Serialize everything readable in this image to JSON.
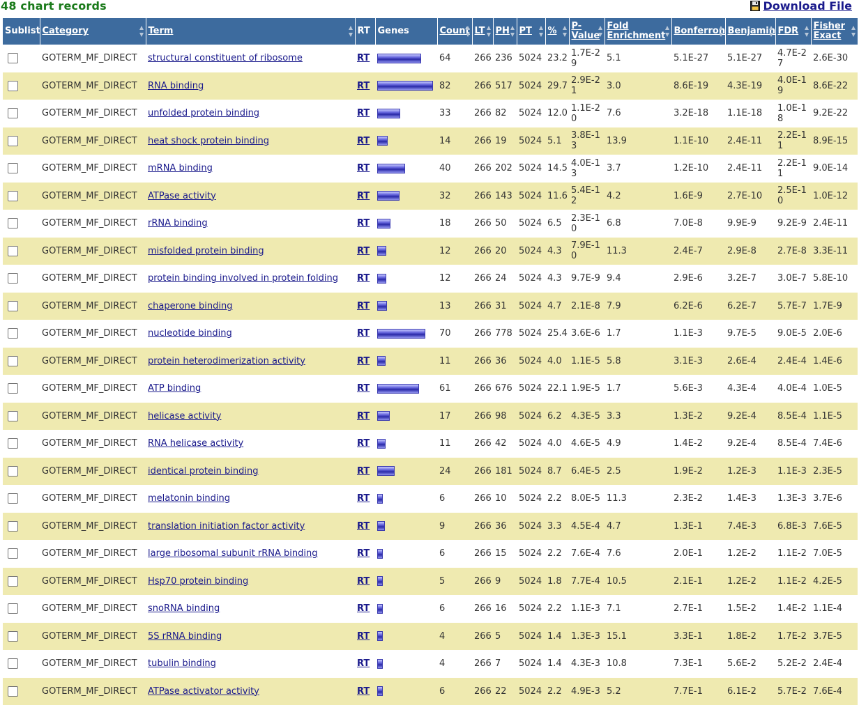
{
  "header": {
    "records_label": "48 chart records",
    "download_label": "Download File",
    "download_icon": "floppy-disk-icon"
  },
  "columns": [
    "Sublist",
    "Category",
    "Term",
    "RT",
    "Genes",
    "Count",
    "LT",
    "PH",
    "PT",
    "%",
    "P-Value",
    "Fold Enrichment",
    "Bonferroni",
    "Benjamini",
    "FDR",
    "Fisher Exact"
  ],
  "rows": [
    {
      "category": "GOTERM_MF_DIRECT",
      "term": "structural constituent of ribosome",
      "rt": "RT",
      "count": "64",
      "lt": "266",
      "ph": "236",
      "pt": "5024",
      "pct": "23.2",
      "pvalue": "1.7E-29",
      "fold": "5.1",
      "bonferroni": "5.1E-27",
      "benjamini": "5.1E-27",
      "fdr": "4.7E-27",
      "fisher": "2.6E-30"
    },
    {
      "category": "GOTERM_MF_DIRECT",
      "term": "RNA binding",
      "rt": "RT",
      "count": "82",
      "lt": "266",
      "ph": "517",
      "pt": "5024",
      "pct": "29.7",
      "pvalue": "2.9E-21",
      "fold": "3.0",
      "bonferroni": "8.6E-19",
      "benjamini": "4.3E-19",
      "fdr": "4.0E-19",
      "fisher": "8.6E-22"
    },
    {
      "category": "GOTERM_MF_DIRECT",
      "term": "unfolded protein binding",
      "rt": "RT",
      "count": "33",
      "lt": "266",
      "ph": "82",
      "pt": "5024",
      "pct": "12.0",
      "pvalue": "1.1E-20",
      "fold": "7.6",
      "bonferroni": "3.2E-18",
      "benjamini": "1.1E-18",
      "fdr": "1.0E-18",
      "fisher": "9.2E-22"
    },
    {
      "category": "GOTERM_MF_DIRECT",
      "term": "heat shock protein binding",
      "rt": "RT",
      "count": "14",
      "lt": "266",
      "ph": "19",
      "pt": "5024",
      "pct": "5.1",
      "pvalue": "3.8E-13",
      "fold": "13.9",
      "bonferroni": "1.1E-10",
      "benjamini": "2.4E-11",
      "fdr": "2.2E-11",
      "fisher": "8.9E-15"
    },
    {
      "category": "GOTERM_MF_DIRECT",
      "term": "mRNA binding",
      "rt": "RT",
      "count": "40",
      "lt": "266",
      "ph": "202",
      "pt": "5024",
      "pct": "14.5",
      "pvalue": "4.0E-13",
      "fold": "3.7",
      "bonferroni": "1.2E-10",
      "benjamini": "2.4E-11",
      "fdr": "2.2E-11",
      "fisher": "9.0E-14"
    },
    {
      "category": "GOTERM_MF_DIRECT",
      "term": "ATPase activity",
      "rt": "RT",
      "count": "32",
      "lt": "266",
      "ph": "143",
      "pt": "5024",
      "pct": "11.6",
      "pvalue": "5.4E-12",
      "fold": "4.2",
      "bonferroni": "1.6E-9",
      "benjamini": "2.7E-10",
      "fdr": "2.5E-10",
      "fisher": "1.0E-12"
    },
    {
      "category": "GOTERM_MF_DIRECT",
      "term": "rRNA binding",
      "rt": "RT",
      "count": "18",
      "lt": "266",
      "ph": "50",
      "pt": "5024",
      "pct": "6.5",
      "pvalue": "2.3E-10",
      "fold": "6.8",
      "bonferroni": "7.0E-8",
      "benjamini": "9.9E-9",
      "fdr": "9.2E-9",
      "fisher": "2.4E-11"
    },
    {
      "category": "GOTERM_MF_DIRECT",
      "term": "misfolded protein binding",
      "rt": "RT",
      "count": "12",
      "lt": "266",
      "ph": "20",
      "pt": "5024",
      "pct": "4.3",
      "pvalue": "7.9E-10",
      "fold": "11.3",
      "bonferroni": "2.4E-7",
      "benjamini": "2.9E-8",
      "fdr": "2.7E-8",
      "fisher": "3.3E-11"
    },
    {
      "category": "GOTERM_MF_DIRECT",
      "term": "protein binding involved in protein folding",
      "rt": "RT",
      "count": "12",
      "lt": "266",
      "ph": "24",
      "pt": "5024",
      "pct": "4.3",
      "pvalue": "9.7E-9",
      "fold": "9.4",
      "bonferroni": "2.9E-6",
      "benjamini": "3.2E-7",
      "fdr": "3.0E-7",
      "fisher": "5.8E-10"
    },
    {
      "category": "GOTERM_MF_DIRECT",
      "term": "chaperone binding",
      "rt": "RT",
      "count": "13",
      "lt": "266",
      "ph": "31",
      "pt": "5024",
      "pct": "4.7",
      "pvalue": "2.1E-8",
      "fold": "7.9",
      "bonferroni": "6.2E-6",
      "benjamini": "6.2E-7",
      "fdr": "5.7E-7",
      "fisher": "1.7E-9"
    },
    {
      "category": "GOTERM_MF_DIRECT",
      "term": "nucleotide binding",
      "rt": "RT",
      "count": "70",
      "lt": "266",
      "ph": "778",
      "pt": "5024",
      "pct": "25.4",
      "pvalue": "3.6E-6",
      "fold": "1.7",
      "bonferroni": "1.1E-3",
      "benjamini": "9.7E-5",
      "fdr": "9.0E-5",
      "fisher": "2.0E-6"
    },
    {
      "category": "GOTERM_MF_DIRECT",
      "term": "protein heterodimerization activity",
      "rt": "RT",
      "count": "11",
      "lt": "266",
      "ph": "36",
      "pt": "5024",
      "pct": "4.0",
      "pvalue": "1.1E-5",
      "fold": "5.8",
      "bonferroni": "3.1E-3",
      "benjamini": "2.6E-4",
      "fdr": "2.4E-4",
      "fisher": "1.4E-6"
    },
    {
      "category": "GOTERM_MF_DIRECT",
      "term": "ATP binding",
      "rt": "RT",
      "count": "61",
      "lt": "266",
      "ph": "676",
      "pt": "5024",
      "pct": "22.1",
      "pvalue": "1.9E-5",
      "fold": "1.7",
      "bonferroni": "5.6E-3",
      "benjamini": "4.3E-4",
      "fdr": "4.0E-4",
      "fisher": "1.0E-5"
    },
    {
      "category": "GOTERM_MF_DIRECT",
      "term": "helicase activity",
      "rt": "RT",
      "count": "17",
      "lt": "266",
      "ph": "98",
      "pt": "5024",
      "pct": "6.2",
      "pvalue": "4.3E-5",
      "fold": "3.3",
      "bonferroni": "1.3E-2",
      "benjamini": "9.2E-4",
      "fdr": "8.5E-4",
      "fisher": "1.1E-5"
    },
    {
      "category": "GOTERM_MF_DIRECT",
      "term": "RNA helicase activity",
      "rt": "RT",
      "count": "11",
      "lt": "266",
      "ph": "42",
      "pt": "5024",
      "pct": "4.0",
      "pvalue": "4.6E-5",
      "fold": "4.9",
      "bonferroni": "1.4E-2",
      "benjamini": "9.2E-4",
      "fdr": "8.5E-4",
      "fisher": "7.4E-6"
    },
    {
      "category": "GOTERM_MF_DIRECT",
      "term": "identical protein binding",
      "rt": "RT",
      "count": "24",
      "lt": "266",
      "ph": "181",
      "pt": "5024",
      "pct": "8.7",
      "pvalue": "6.4E-5",
      "fold": "2.5",
      "bonferroni": "1.9E-2",
      "benjamini": "1.2E-3",
      "fdr": "1.1E-3",
      "fisher": "2.3E-5"
    },
    {
      "category": "GOTERM_MF_DIRECT",
      "term": "melatonin binding",
      "rt": "RT",
      "count": "6",
      "lt": "266",
      "ph": "10",
      "pt": "5024",
      "pct": "2.2",
      "pvalue": "8.0E-5",
      "fold": "11.3",
      "bonferroni": "2.3E-2",
      "benjamini": "1.4E-3",
      "fdr": "1.3E-3",
      "fisher": "3.7E-6"
    },
    {
      "category": "GOTERM_MF_DIRECT",
      "term": "translation initiation factor activity",
      "rt": "RT",
      "count": "9",
      "lt": "266",
      "ph": "36",
      "pt": "5024",
      "pct": "3.3",
      "pvalue": "4.5E-4",
      "fold": "4.7",
      "bonferroni": "1.3E-1",
      "benjamini": "7.4E-3",
      "fdr": "6.8E-3",
      "fisher": "7.6E-5"
    },
    {
      "category": "GOTERM_MF_DIRECT",
      "term": "large ribosomal subunit rRNA binding",
      "rt": "RT",
      "count": "6",
      "lt": "266",
      "ph": "15",
      "pt": "5024",
      "pct": "2.2",
      "pvalue": "7.6E-4",
      "fold": "7.6",
      "bonferroni": "2.0E-1",
      "benjamini": "1.2E-2",
      "fdr": "1.1E-2",
      "fisher": "7.0E-5"
    },
    {
      "category": "GOTERM_MF_DIRECT",
      "term": "Hsp70 protein binding",
      "rt": "RT",
      "count": "5",
      "lt": "266",
      "ph": "9",
      "pt": "5024",
      "pct": "1.8",
      "pvalue": "7.7E-4",
      "fold": "10.5",
      "bonferroni": "2.1E-1",
      "benjamini": "1.2E-2",
      "fdr": "1.1E-2",
      "fisher": "4.2E-5"
    },
    {
      "category": "GOTERM_MF_DIRECT",
      "term": "snoRNA binding",
      "rt": "RT",
      "count": "6",
      "lt": "266",
      "ph": "16",
      "pt": "5024",
      "pct": "2.2",
      "pvalue": "1.1E-3",
      "fold": "7.1",
      "bonferroni": "2.7E-1",
      "benjamini": "1.5E-2",
      "fdr": "1.4E-2",
      "fisher": "1.1E-4"
    },
    {
      "category": "GOTERM_MF_DIRECT",
      "term": "5S rRNA binding",
      "rt": "RT",
      "count": "4",
      "lt": "266",
      "ph": "5",
      "pt": "5024",
      "pct": "1.4",
      "pvalue": "1.3E-3",
      "fold": "15.1",
      "bonferroni": "3.3E-1",
      "benjamini": "1.8E-2",
      "fdr": "1.7E-2",
      "fisher": "3.7E-5"
    },
    {
      "category": "GOTERM_MF_DIRECT",
      "term": "tubulin binding",
      "rt": "RT",
      "count": "4",
      "lt": "266",
      "ph": "7",
      "pt": "5024",
      "pct": "1.4",
      "pvalue": "4.3E-3",
      "fold": "10.8",
      "bonferroni": "7.3E-1",
      "benjamini": "5.6E-2",
      "fdr": "5.2E-2",
      "fisher": "2.4E-4"
    },
    {
      "category": "GOTERM_MF_DIRECT",
      "term": "ATPase activator activity",
      "rt": "RT",
      "count": "6",
      "lt": "266",
      "ph": "22",
      "pt": "5024",
      "pct": "2.2",
      "pvalue": "4.9E-3",
      "fold": "5.2",
      "bonferroni": "7.7E-1",
      "benjamini": "6.1E-2",
      "fdr": "5.7E-2",
      "fisher": "7.6E-4"
    }
  ],
  "colors": {
    "header_bg": "#3d6b9e",
    "alt_row": "#efeab0",
    "link": "#1a1a8c",
    "records": "#1a7a1a"
  }
}
